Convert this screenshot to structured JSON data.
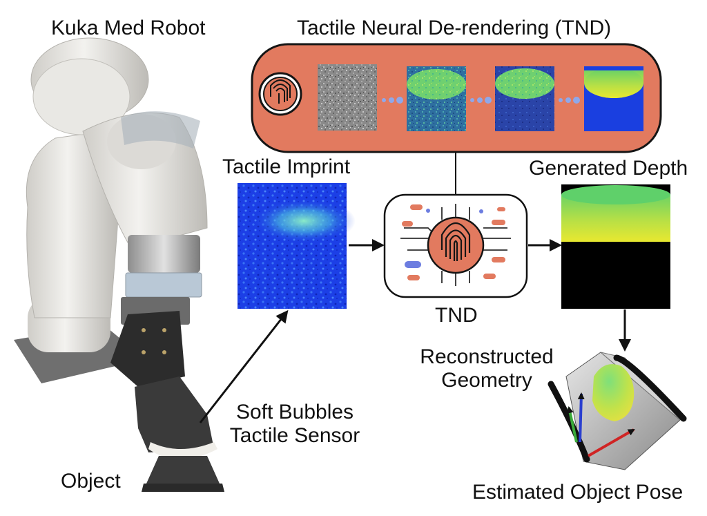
{
  "labels": {
    "robot": "Kuka Med Robot",
    "tnd_title": "Tactile Neural De-rendering (TND)",
    "tactile_imprint": "Tactile Imprint",
    "generated_depth": "Generated Depth",
    "tnd": "TND",
    "reconstructed_line1": "Reconstructed",
    "reconstructed_line2": "Geometry",
    "sensor_line1": "Soft Bubbles",
    "sensor_line2": "Tactile Sensor",
    "object": "Object",
    "pose": "Estimated Object Pose"
  },
  "colors": {
    "pipeline_bg": "#e27a5f",
    "imprint_blue": "#1a3fe0",
    "depth_yellow": "#d8e83c",
    "depth_green": "#5fd06a",
    "arrow": "#111111",
    "dots": "#8fa8ea"
  },
  "icons": [
    "fingerprint-icon",
    "circuit-icon"
  ]
}
